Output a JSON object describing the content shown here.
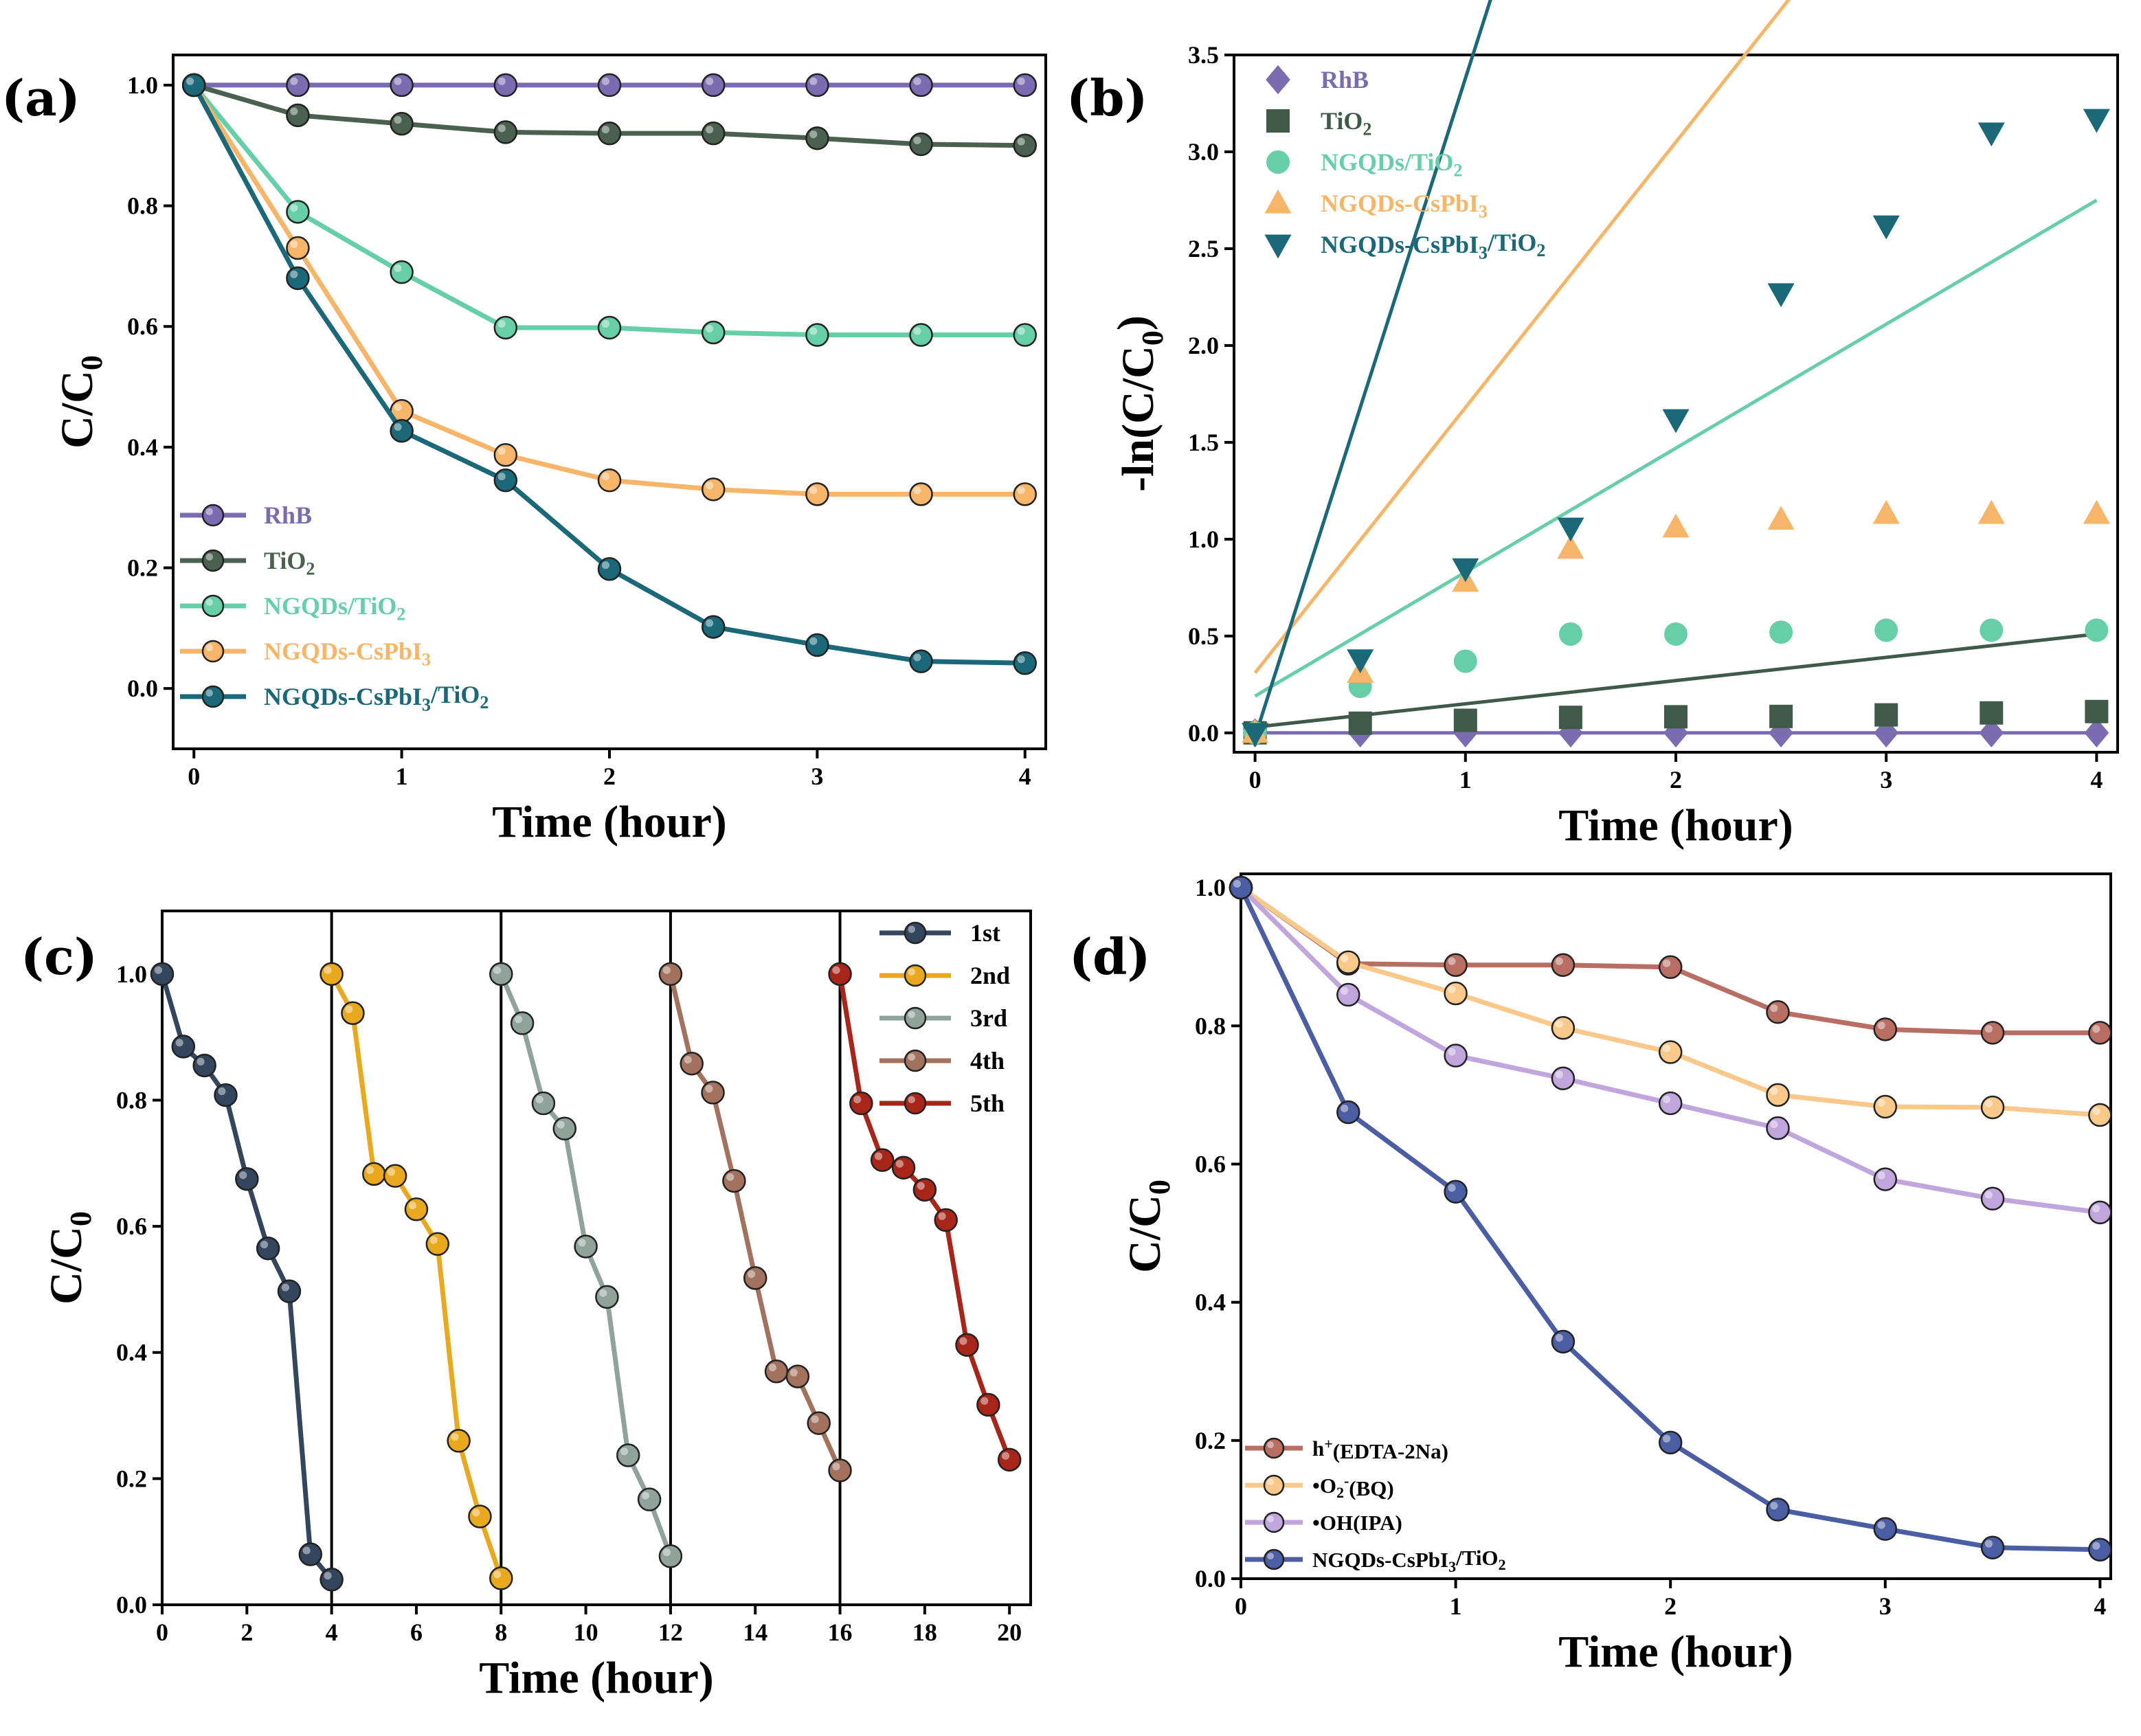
{
  "chart_data": [
    {
      "panel": "(a)",
      "type": "line",
      "xlabel": "Time (hour)",
      "ylabel": "C/C0",
      "xlim": [
        -0.1,
        4.1
      ],
      "ylim": [
        -0.1,
        1.05
      ],
      "xticks": [
        0,
        1,
        2,
        3,
        4
      ],
      "yticks": [
        0.0,
        0.2,
        0.4,
        0.6,
        0.8,
        1.0
      ],
      "x": [
        0,
        0.5,
        1,
        1.5,
        2,
        2.5,
        3,
        3.5,
        4
      ],
      "legend_position": "bottom-left",
      "series": [
        {
          "name": "RhB",
          "color": "#7b6bb0",
          "values": [
            1.0,
            1.0,
            1.0,
            1.0,
            1.0,
            1.0,
            1.0,
            1.0,
            1.0
          ]
        },
        {
          "name": "TiO2",
          "color": "#4a6150",
          "values": [
            1.0,
            0.95,
            0.936,
            0.922,
            0.92,
            0.92,
            0.912,
            0.902,
            0.9
          ]
        },
        {
          "name": "NGQDs/TiO2",
          "color": "#66cfa8",
          "values": [
            1.0,
            0.79,
            0.69,
            0.598,
            0.598,
            0.59,
            0.586,
            0.586,
            0.586
          ]
        },
        {
          "name": "NGQDs-CsPbI3",
          "color": "#f7b56a",
          "values": [
            1.0,
            0.73,
            0.46,
            0.387,
            0.345,
            0.33,
            0.322,
            0.322,
            0.322
          ]
        },
        {
          "name": "NGQDs-CsPbI3/TiO2",
          "color": "#1a6878",
          "values": [
            1.0,
            0.68,
            0.427,
            0.345,
            0.198,
            0.102,
            0.072,
            0.045,
            0.042
          ]
        }
      ]
    },
    {
      "panel": "(b)",
      "type": "scatter",
      "xlabel": "Time (hour)",
      "ylabel": "-ln(C/C0)",
      "xlim": [
        -0.1,
        4.1
      ],
      "ylim": [
        -0.1,
        3.5
      ],
      "xticks": [
        0,
        1,
        2,
        3,
        4
      ],
      "yticks": [
        0.0,
        0.5,
        1.0,
        1.5,
        2.0,
        2.5,
        3.0,
        3.5
      ],
      "x": [
        0,
        0.5,
        1,
        1.5,
        2,
        2.5,
        3,
        3.5,
        4
      ],
      "legend_position": "top-left",
      "series": [
        {
          "name": "RhB",
          "marker": "diamond",
          "color": "#7b6bb0",
          "values": [
            0,
            0,
            0,
            0,
            0,
            0,
            0,
            0,
            0
          ],
          "fit": [
            0,
            0
          ]
        },
        {
          "name": "TiO2",
          "marker": "square",
          "color": "#3f5a48",
          "values": [
            0,
            0.05,
            0.065,
            0.08,
            0.083,
            0.085,
            0.093,
            0.103,
            0.11
          ],
          "fit": [
            0.03,
            0.12
          ]
        },
        {
          "name": "NGQDs/TiO2",
          "marker": "circle",
          "color": "#66cfa8",
          "values": [
            0,
            0.24,
            0.37,
            0.51,
            0.51,
            0.52,
            0.53,
            0.53,
            0.53
          ],
          "fit": [
            0.19,
            0.64
          ]
        },
        {
          "name": "NGQDs-CsPbI3",
          "marker": "triangle-up",
          "color": "#f7b56a",
          "values": [
            0,
            0.31,
            0.78,
            0.95,
            1.06,
            1.1,
            1.13,
            1.13,
            1.13
          ],
          "fit": [
            0.31,
            1.37
          ]
        },
        {
          "name": "NGQDs-CsPbI3/TiO2",
          "marker": "triangle-down",
          "color": "#1a6878",
          "values": [
            0,
            0.38,
            0.85,
            1.06,
            1.62,
            2.27,
            2.62,
            3.1,
            3.17
          ],
          "fit": [
            -0.02,
            3.4
          ]
        }
      ]
    },
    {
      "panel": "(c)",
      "type": "line",
      "xlabel": "Time (hour)",
      "ylabel": "C/C0",
      "xlim": [
        0,
        20.5
      ],
      "ylim": [
        0,
        1.1
      ],
      "xticks": [
        0,
        2,
        4,
        6,
        8,
        10,
        12,
        14,
        16,
        18,
        20
      ],
      "yticks": [
        0.0,
        0.2,
        0.4,
        0.6,
        0.8,
        1.0
      ],
      "vlines": [
        4,
        8,
        12,
        16
      ],
      "legend_position": "top-right",
      "series": [
        {
          "name": "1st",
          "color": "#34465e",
          "x": [
            0,
            0.5,
            1,
            1.5,
            2,
            2.5,
            3,
            3.5,
            4
          ],
          "values": [
            1.0,
            0.885,
            0.855,
            0.808,
            0.675,
            0.565,
            0.497,
            0.08,
            0.04
          ]
        },
        {
          "name": "2nd",
          "color": "#e9a81d",
          "x": [
            4,
            4.5,
            5,
            5.5,
            6,
            6.5,
            7,
            7.5,
            8
          ],
          "values": [
            1.0,
            0.938,
            0.683,
            0.68,
            0.627,
            0.572,
            0.26,
            0.14,
            0.042
          ]
        },
        {
          "name": "3rd",
          "color": "#8fa39b",
          "x": [
            8,
            8.5,
            9,
            9.5,
            10,
            10.5,
            11,
            11.5,
            12
          ],
          "values": [
            1.0,
            0.922,
            0.795,
            0.755,
            0.568,
            0.488,
            0.237,
            0.167,
            0.077
          ]
        },
        {
          "name": "4th",
          "color": "#a2725e",
          "x": [
            12,
            12.5,
            13,
            13.5,
            14,
            14.5,
            15,
            15.5,
            16
          ],
          "values": [
            1.0,
            0.858,
            0.812,
            0.672,
            0.518,
            0.37,
            0.362,
            0.288,
            0.213
          ]
        },
        {
          "name": "5th",
          "color": "#a8251a",
          "x": [
            16,
            16.5,
            17,
            17.5,
            18,
            18.5,
            19,
            19.5,
            20
          ],
          "values": [
            1.0,
            0.795,
            0.705,
            0.693,
            0.658,
            0.61,
            0.412,
            0.317,
            0.23
          ]
        }
      ]
    },
    {
      "panel": "(d)",
      "type": "line",
      "xlabel": "Time (hour)",
      "ylabel": "C/C0",
      "xlim": [
        0,
        4.05
      ],
      "ylim": [
        0,
        1.02
      ],
      "xticks": [
        0,
        1,
        2,
        3,
        4
      ],
      "yticks": [
        0.0,
        0.2,
        0.4,
        0.6,
        0.8,
        1.0
      ],
      "x": [
        0,
        0.5,
        1,
        1.5,
        2,
        2.5,
        3,
        3.5,
        4
      ],
      "legend_position": "bottom-left",
      "series": [
        {
          "name": "h+(EDTA-2Na)",
          "color": "#b86e62",
          "values": [
            1.0,
            0.89,
            0.888,
            0.888,
            0.885,
            0.82,
            0.795,
            0.79,
            0.79
          ]
        },
        {
          "name": "•O2-(BQ)",
          "color": "#f9c98b",
          "values": [
            1.0,
            0.892,
            0.847,
            0.797,
            0.762,
            0.7,
            0.683,
            0.682,
            0.671
          ]
        },
        {
          "name": "•OH(IPA)",
          "color": "#c0a6dc",
          "values": [
            1.0,
            0.845,
            0.757,
            0.724,
            0.688,
            0.652,
            0.578,
            0.55,
            0.53
          ]
        },
        {
          "name": "NGQDs-CsPbI3/TiO2",
          "color": "#4b5da3",
          "values": [
            1.0,
            0.675,
            0.56,
            0.343,
            0.197,
            0.1,
            0.072,
            0.045,
            0.042
          ]
        }
      ]
    }
  ]
}
